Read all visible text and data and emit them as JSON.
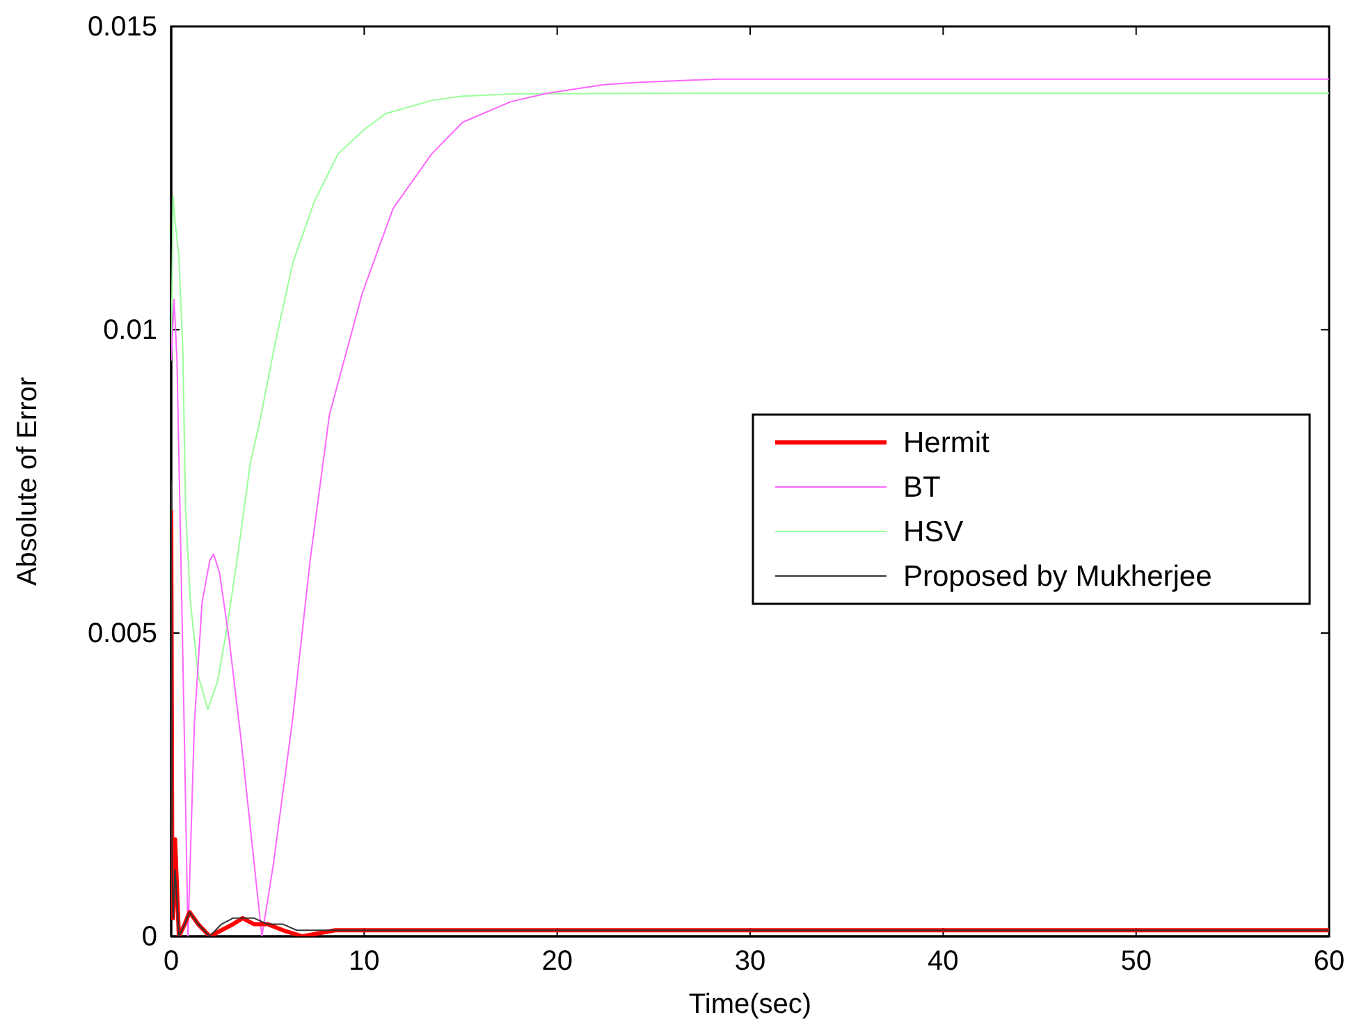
{
  "chart_data": {
    "type": "line",
    "xlabel": "Time(sec)",
    "ylabel": "Absolute of Error",
    "xlim": [
      0,
      60
    ],
    "ylim": [
      0,
      0.015
    ],
    "xticks": [
      0,
      10,
      20,
      30,
      40,
      50,
      60
    ],
    "yticks": [
      0,
      0.005,
      0.01,
      0.015
    ],
    "grid": false,
    "legend": "right",
    "line_style": "solid",
    "marker": "none",
    "series": [
      {
        "name": "Hermit",
        "color": "#ff0000",
        "x": [
          0,
          0.05,
          0.1,
          0.2,
          0.3,
          0.4,
          0.7,
          0.95,
          1.4,
          2.0,
          2.6,
          3.2,
          3.7,
          4.3,
          5.0,
          5.8,
          6.8,
          8.5,
          20,
          40,
          60
        ],
        "values": [
          0.007,
          0.0015,
          0.0003,
          0.0016,
          0.0008,
          0.0,
          0.0002,
          0.0004,
          0.0002,
          0.0,
          0.0001,
          0.0002,
          0.0003,
          0.0002,
          0.0002,
          0.0001,
          0.0,
          0.0001,
          0.0001,
          0.0001,
          0.0001
        ]
      },
      {
        "name": "BT",
        "color": "#ff66ff",
        "x": [
          0,
          0.15,
          0.3,
          0.5,
          0.7,
          0.87,
          1.2,
          1.6,
          2.0,
          2.2,
          2.5,
          3.0,
          3.6,
          4.2,
          4.7,
          5.3,
          6.3,
          7.2,
          8.2,
          9.9,
          11.5,
          13.5,
          15.1,
          17.6,
          19.5,
          22.4,
          24.3,
          28.3,
          40,
          60
        ],
        "values": [
          0.0095,
          0.0105,
          0.0095,
          0.0063,
          0.003,
          0.0,
          0.0035,
          0.0055,
          0.0062,
          0.0063,
          0.006,
          0.0049,
          0.0033,
          0.0015,
          0.0,
          0.0012,
          0.0036,
          0.0062,
          0.0086,
          0.0106,
          0.012,
          0.0129,
          0.01342,
          0.01376,
          0.0139,
          0.01404,
          0.01408,
          0.01413,
          0.01413,
          0.01413
        ]
      },
      {
        "name": "HSV",
        "color": "#99ff99",
        "x": [
          0,
          0.1,
          0.2,
          0.4,
          0.6,
          0.75,
          1.0,
          1.4,
          1.9,
          2.4,
          2.9,
          3.5,
          4.1,
          4.6,
          5.4,
          6.3,
          7.4,
          8.65,
          10,
          11.1,
          13.5,
          15.1,
          18,
          30,
          60
        ],
        "values": [
          0.0095,
          0.0122,
          0.0118,
          0.0112,
          0.0097,
          0.007,
          0.0055,
          0.0043,
          0.00374,
          0.0042,
          0.0051,
          0.0064,
          0.0078,
          0.0085,
          0.0098,
          0.0111,
          0.0121,
          0.0129,
          0.0133,
          0.01356,
          0.01378,
          0.01385,
          0.01389,
          0.0139,
          0.0139
        ]
      },
      {
        "name": "Proposed by Mukherjee",
        "color": "#333333",
        "x": [
          0,
          0.05,
          0.1,
          0.2,
          0.3,
          0.4,
          0.7,
          0.95,
          1.4,
          2.0,
          2.6,
          3.2,
          3.7,
          4.3,
          5.0,
          5.8,
          6.5,
          7.5,
          8.5,
          20,
          40,
          60
        ],
        "values": [
          0.0075,
          0.0012,
          0.0003,
          0.0011,
          0.0006,
          0.0,
          0.0002,
          0.0004,
          0.0002,
          0.0,
          0.0002,
          0.0003,
          0.0003,
          0.0003,
          0.0002,
          0.0002,
          0.0001,
          0.0001,
          0.0001,
          0.0001,
          0.0001,
          0.0001
        ]
      }
    ]
  }
}
